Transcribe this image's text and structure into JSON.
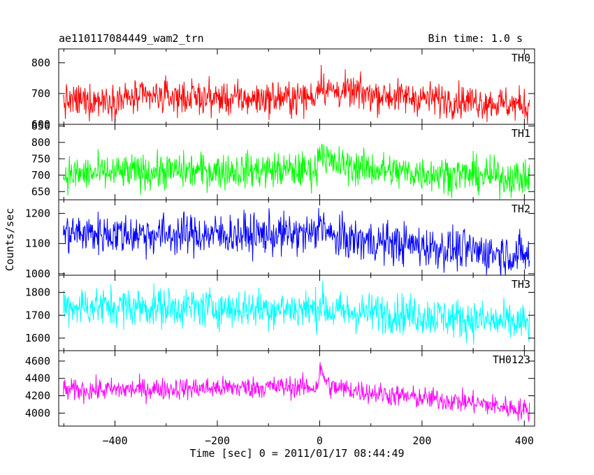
{
  "header": {
    "left_title": "ae110117084449_wam2_trn",
    "right_title": "Bin time: 1.0 s"
  },
  "chart_data": {
    "type": "line",
    "xlabel": "Time [sec] 0 = 2011/01/17 08:44:49",
    "ylabel": "Counts/sec",
    "xlim": [
      -510,
      420
    ],
    "xticks": [
      -400,
      -200,
      0,
      200,
      400
    ],
    "xtick_labels": [
      "−400",
      "−200",
      "0",
      "200",
      "400"
    ],
    "x_start": -501,
    "x_end": 410,
    "bin": 1.0,
    "panels": [
      {
        "name": "TH0",
        "color": "#ff0000",
        "ylim": [
          600,
          845
        ],
        "yticks": [
          600,
          700,
          800
        ],
        "profile": [
          [
            -501,
            673
          ],
          [
            -300,
            690
          ],
          [
            -150,
            682
          ],
          [
            -10,
            688
          ],
          [
            0,
            740
          ],
          [
            15,
            710
          ],
          [
            150,
            690
          ],
          [
            300,
            675
          ],
          [
            410,
            660
          ]
        ],
        "noise": 30
      },
      {
        "name": "TH1",
        "color": "#00ff00",
        "ylim": [
          625,
          855
        ],
        "yticks": [
          650,
          700,
          750,
          800,
          850
        ],
        "profile": [
          [
            -501,
            702
          ],
          [
            -300,
            712
          ],
          [
            -100,
            715
          ],
          [
            -5,
            715
          ],
          [
            0,
            790
          ],
          [
            20,
            735
          ],
          [
            150,
            710
          ],
          [
            300,
            700
          ],
          [
            410,
            690
          ]
        ],
        "noise": 30
      },
      {
        "name": "TH2",
        "color": "#0000ff",
        "ylim": [
          995,
          1245
        ],
        "yticks": [
          1000,
          1100,
          1200
        ],
        "profile": [
          [
            -501,
            1135
          ],
          [
            -300,
            1130
          ],
          [
            -100,
            1130
          ],
          [
            -5,
            1130
          ],
          [
            0,
            1190
          ],
          [
            20,
            1120
          ],
          [
            150,
            1100
          ],
          [
            300,
            1075
          ],
          [
            410,
            1060
          ]
        ],
        "noise": 38
      },
      {
        "name": "TH3",
        "color": "#00ffff",
        "ylim": [
          1545,
          1875
        ],
        "yticks": [
          1600,
          1700,
          1800
        ],
        "profile": [
          [
            -501,
            1740
          ],
          [
            -300,
            1735
          ],
          [
            -100,
            1730
          ],
          [
            -5,
            1725
          ],
          [
            0,
            1760
          ],
          [
            20,
            1715
          ],
          [
            150,
            1710
          ],
          [
            300,
            1680
          ],
          [
            410,
            1660
          ]
        ],
        "noise": 48
      },
      {
        "name": "TH0123",
        "color": "#ff00ff",
        "ylim": [
          3850,
          4720
        ],
        "yticks": [
          4000,
          4200,
          4400,
          4600
        ],
        "profile": [
          [
            -501,
            4260
          ],
          [
            -300,
            4280
          ],
          [
            -100,
            4300
          ],
          [
            -5,
            4300
          ],
          [
            0,
            4500
          ],
          [
            20,
            4300
          ],
          [
            150,
            4200
          ],
          [
            300,
            4120
          ],
          [
            410,
            4030
          ]
        ],
        "noise": 70
      }
    ]
  }
}
